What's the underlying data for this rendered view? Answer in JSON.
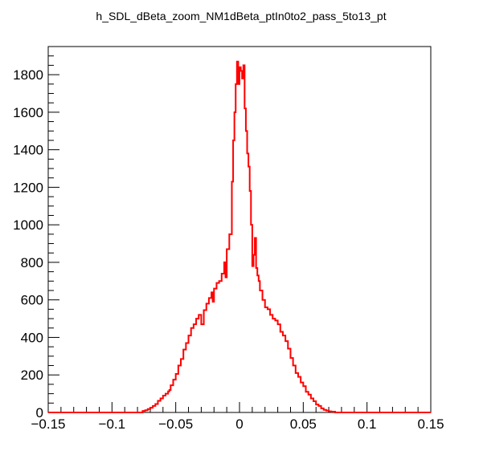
{
  "chart_data": {
    "type": "step-line",
    "title": "h_SDL_dBeta_zoom_NM1dBeta_ptIn0to2_pass_5to13_pt",
    "xlabel": "",
    "ylabel": "",
    "xlim": [
      -0.15,
      0.15
    ],
    "ylim": [
      0,
      1950
    ],
    "grid": false,
    "x_ticks": [
      -0.15,
      -0.1,
      -0.05,
      0,
      0.05,
      0.1,
      0.15
    ],
    "x_tick_labels": [
      "−0.15",
      "−0.1",
      "−0.05",
      "0",
      "0.05",
      "0.1",
      "0.15"
    ],
    "y_ticks": [
      0,
      200,
      400,
      600,
      800,
      1000,
      1200,
      1400,
      1600,
      1800
    ],
    "y_tick_labels": [
      "0",
      "200",
      "400",
      "600",
      "800",
      "1000",
      "1200",
      "1400",
      "1600",
      "1800"
    ],
    "bin_width": 0.001,
    "series": [
      {
        "color": "#ff0000",
        "points": [
          [
            -0.15,
            0
          ],
          [
            -0.08,
            0
          ],
          [
            -0.076,
            8
          ],
          [
            -0.074,
            12
          ],
          [
            -0.072,
            18
          ],
          [
            -0.07,
            25
          ],
          [
            -0.068,
            35
          ],
          [
            -0.066,
            45
          ],
          [
            -0.064,
            62
          ],
          [
            -0.062,
            75
          ],
          [
            -0.06,
            90
          ],
          [
            -0.058,
            100
          ],
          [
            -0.056,
            112
          ],
          [
            -0.055,
            120
          ],
          [
            -0.054,
            145
          ],
          [
            -0.052,
            175
          ],
          [
            -0.05,
            205
          ],
          [
            -0.048,
            250
          ],
          [
            -0.046,
            285
          ],
          [
            -0.044,
            335
          ],
          [
            -0.042,
            370
          ],
          [
            -0.04,
            410
          ],
          [
            -0.038,
            450
          ],
          [
            -0.036,
            470
          ],
          [
            -0.034,
            500
          ],
          [
            -0.032,
            520
          ],
          [
            -0.03,
            470
          ],
          [
            -0.028,
            545
          ],
          [
            -0.026,
            580
          ],
          [
            -0.024,
            610
          ],
          [
            -0.022,
            640
          ],
          [
            -0.021,
            590
          ],
          [
            -0.02,
            660
          ],
          [
            -0.018,
            690
          ],
          [
            -0.016,
            700
          ],
          [
            -0.014,
            740
          ],
          [
            -0.012,
            800
          ],
          [
            -0.011,
            720
          ],
          [
            -0.01,
            870
          ],
          [
            -0.008,
            950
          ],
          [
            -0.006,
            1230
          ],
          [
            -0.005,
            1450
          ],
          [
            -0.004,
            1600
          ],
          [
            -0.003,
            1750
          ],
          [
            -0.002,
            1870
          ],
          [
            -0.001,
            1750
          ],
          [
            0.0,
            1840
          ],
          [
            0.001,
            1820
          ],
          [
            0.002,
            1780
          ],
          [
            0.003,
            1850
          ],
          [
            0.004,
            1620
          ],
          [
            0.005,
            1500
          ],
          [
            0.006,
            1380
          ],
          [
            0.007,
            1310
          ],
          [
            0.008,
            1180
          ],
          [
            0.009,
            1000
          ],
          [
            0.01,
            780
          ],
          [
            0.011,
            840
          ],
          [
            0.012,
            930
          ],
          [
            0.013,
            770
          ],
          [
            0.014,
            730
          ],
          [
            0.015,
            700
          ],
          [
            0.016,
            650
          ],
          [
            0.018,
            600
          ],
          [
            0.02,
            560
          ],
          [
            0.022,
            550
          ],
          [
            0.024,
            520
          ],
          [
            0.026,
            500
          ],
          [
            0.028,
            490
          ],
          [
            0.03,
            470
          ],
          [
            0.032,
            430
          ],
          [
            0.034,
            410
          ],
          [
            0.036,
            380
          ],
          [
            0.038,
            340
          ],
          [
            0.04,
            290
          ],
          [
            0.042,
            250
          ],
          [
            0.044,
            210
          ],
          [
            0.046,
            190
          ],
          [
            0.048,
            160
          ],
          [
            0.05,
            140
          ],
          [
            0.052,
            110
          ],
          [
            0.054,
            95
          ],
          [
            0.056,
            75
          ],
          [
            0.058,
            60
          ],
          [
            0.06,
            42
          ],
          [
            0.062,
            35
          ],
          [
            0.064,
            22
          ],
          [
            0.066,
            14
          ],
          [
            0.068,
            10
          ],
          [
            0.07,
            6
          ],
          [
            0.072,
            4
          ],
          [
            0.075,
            0
          ],
          [
            0.15,
            0
          ]
        ]
      }
    ]
  }
}
